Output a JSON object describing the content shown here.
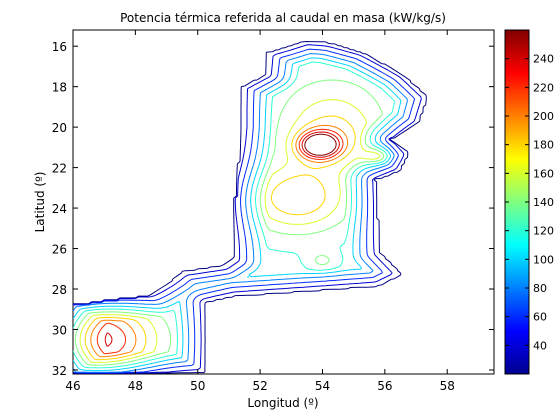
{
  "chart_data": {
    "type": "contour",
    "title": "Potencia térmica referida al caudal en masa (kW/kg/s)",
    "xlabel": "Longitud (º)",
    "ylabel": "Latitud (º)",
    "xlim": [
      46,
      59.5
    ],
    "ylim": [
      32.2,
      15.2
    ],
    "y_reversed": true,
    "x_ticks": [
      46,
      48,
      50,
      52,
      54,
      56,
      58
    ],
    "y_ticks": [
      16,
      18,
      20,
      22,
      24,
      26,
      28,
      30,
      32
    ],
    "colorbar": {
      "colormap": "jet",
      "range": [
        20,
        260
      ],
      "ticks": [
        40,
        60,
        80,
        100,
        120,
        140,
        160,
        180,
        200,
        220,
        240
      ]
    },
    "contour_levels": [
      20,
      40,
      60,
      80,
      100,
      120,
      140,
      160,
      180,
      200,
      220,
      240,
      260
    ],
    "peaks": [
      {
        "lon": 53.9,
        "lat": 20.9,
        "value": 255
      },
      {
        "lon": 55.8,
        "lat": 21.4,
        "value": 120
      },
      {
        "lon": 53.2,
        "lat": 23.5,
        "value": 175
      },
      {
        "lon": 46.8,
        "lat": 30.5,
        "value": 185
      },
      {
        "lon": 54.0,
        "lat": 26.6,
        "value": 95
      }
    ]
  }
}
